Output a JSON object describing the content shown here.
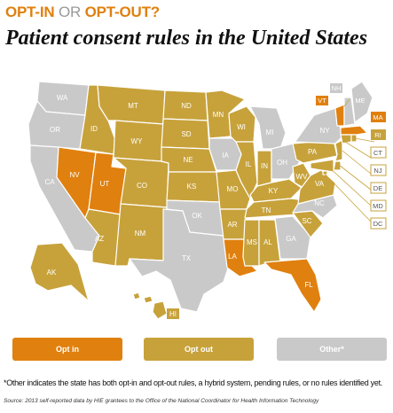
{
  "header": {
    "kicker_opt_in": "OPT-IN",
    "kicker_or": " OR ",
    "kicker_opt_out": "OPT-OUT?",
    "title": "Patient consent rules in the United States"
  },
  "colors": {
    "opt_in": "#e0800f",
    "opt_out": "#c7a23b",
    "other": "#c9c9c9",
    "border": "#ffffff"
  },
  "states": {
    "WA": "other",
    "OR": "other",
    "CA": "other",
    "ID": "opt_out",
    "NV": "opt_in",
    "UT": "opt_in",
    "AZ": "opt_out",
    "MT": "opt_out",
    "WY": "opt_out",
    "CO": "opt_out",
    "NM": "opt_out",
    "ND": "opt_out",
    "SD": "opt_out",
    "NE": "opt_out",
    "KS": "opt_out",
    "OK": "other",
    "TX": "other",
    "MN": "opt_out",
    "IA": "other",
    "MO": "opt_out",
    "AR": "opt_out",
    "LA": "opt_in",
    "WI": "opt_out",
    "IL": "opt_out",
    "MS": "opt_out",
    "AL": "opt_out",
    "MI": "other",
    "IN": "opt_out",
    "OH": "other",
    "KY": "opt_out",
    "TN": "opt_out",
    "GA": "other",
    "FL": "opt_in",
    "SC": "opt_out",
    "NC": "other",
    "VA": "opt_out",
    "WV": "opt_out",
    "PA": "opt_out",
    "NY": "other",
    "VT": "opt_in",
    "NH": "other",
    "ME": "other",
    "MA": "opt_in",
    "RI": "opt_out",
    "CT": "opt_out",
    "NJ": "opt_out",
    "DE": "opt_out",
    "MD": "opt_out",
    "DC": "opt_out",
    "AK": "opt_out",
    "HI": "opt_out"
  },
  "legend": {
    "opt_in": "Opt in",
    "opt_out": "Opt out",
    "other": "Other*"
  },
  "footnote": "*Other indicates the state has both opt-in and opt-out rules, a hybrid system, pending rules, or no rules identified yet.",
  "source": "Source: 2013 self-reported data by HIE grantees to the Office of the National Coordinator for Health Information Technology"
}
